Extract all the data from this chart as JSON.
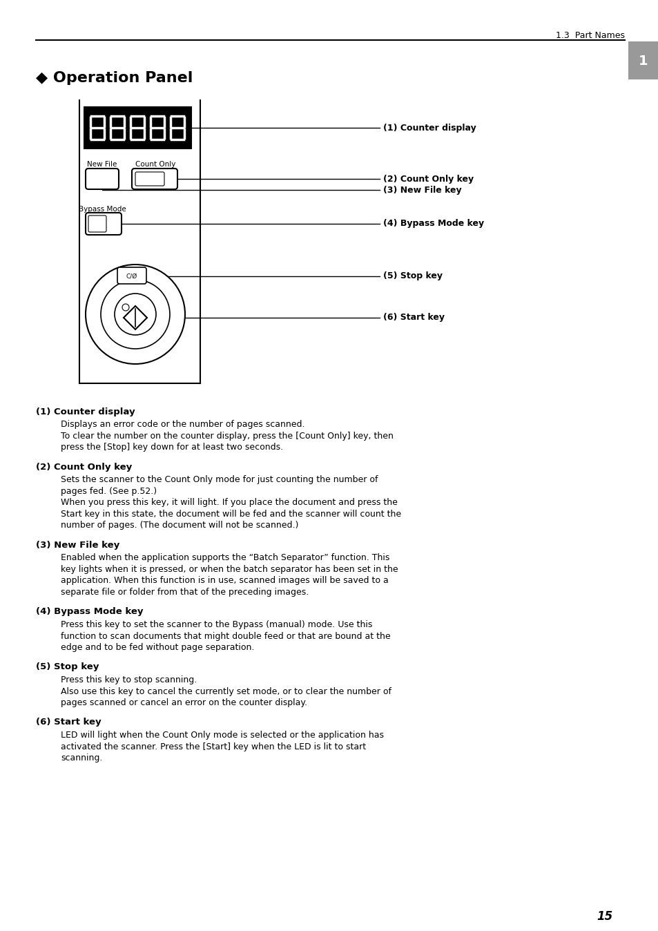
{
  "page_header": "1.3  Part Names",
  "page_number": "15",
  "chapter_tab": "1",
  "title": "◆ Operation Panel",
  "stop_label": "C/Ø",
  "sections": [
    {
      "heading": "(1) Counter display",
      "body": [
        "Displays an error code or the number of pages scanned.",
        "To clear the number on the counter display, press the [Count Only] key, then",
        "press the [Stop] key down for at least two seconds."
      ]
    },
    {
      "heading": "(2) Count Only key",
      "body": [
        "Sets the scanner to the Count Only mode for just counting the number of",
        "pages fed. (See p.52.)",
        "When you press this key, it will light. If you place the document and press the",
        "Start key in this state, the document will be fed and the scanner will count the",
        "number of pages. (The document will not be scanned.)"
      ]
    },
    {
      "heading": "(3) New File key",
      "body": [
        "Enabled when the application supports the “Batch Separator” function. This",
        "key lights when it is pressed, or when the batch separator has been set in the",
        "application. When this function is in use, scanned images will be saved to a",
        "separate file or folder from that of the preceding images."
      ]
    },
    {
      "heading": "(4) Bypass Mode key",
      "body": [
        "Press this key to set the scanner to the Bypass (manual) mode. Use this",
        "function to scan documents that might double feed or that are bound at the",
        "edge and to be fed without page separation."
      ]
    },
    {
      "heading": "(5) Stop key",
      "body": [
        "Press this key to stop scanning.",
        "Also use this key to cancel the currently set mode, or to clear the number of",
        "pages scanned or cancel an error on the counter display."
      ]
    },
    {
      "heading": "(6) Start key",
      "body": [
        "LED will light when the Count Only mode is selected or the application has",
        "activated the scanner. Press the [Start] key when the LED is lit to start",
        "scanning."
      ]
    }
  ],
  "bg_color": "#ffffff",
  "text_color": "#000000"
}
